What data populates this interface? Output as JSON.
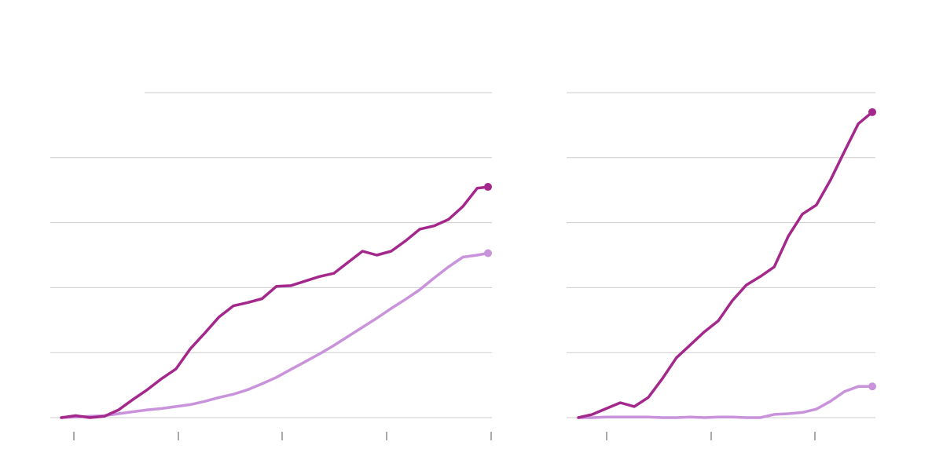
{
  "colors": {
    "background": "#ffffff",
    "gridline": "#cccccc",
    "axis_tick": "#555555",
    "series_dark": "#a4288c",
    "series_light": "#c993dc"
  },
  "chart_data": [
    {
      "type": "line",
      "title": "",
      "xlabel": "",
      "ylabel": "",
      "grid": true,
      "legend": "none",
      "ylim": [
        0,
        5
      ],
      "gridlines_y": [
        0,
        1,
        2,
        3,
        4,
        5
      ],
      "xlim": [
        0,
        29.5
      ],
      "x_ticks": [
        1,
        8,
        15,
        22,
        29
      ],
      "series": [
        {
          "color_key": "series_dark",
          "x": [
            0,
            1,
            2,
            3,
            4,
            5,
            6,
            7,
            8,
            9,
            10,
            11,
            12,
            13,
            14,
            15,
            16,
            17,
            18,
            19,
            20,
            21,
            22,
            23,
            24,
            25,
            26,
            27,
            28,
            29,
            29.75
          ],
          "values": [
            0,
            0.03,
            0,
            0.02,
            0.12,
            0.28,
            0.43,
            0.6,
            0.75,
            1.06,
            1.3,
            1.55,
            1.72,
            1.77,
            1.83,
            2.02,
            2.03,
            2.1,
            2.17,
            2.22,
            2.39,
            2.56,
            2.5,
            2.56,
            2.72,
            2.9,
            2.95,
            3.05,
            3.25,
            3.53,
            3.55
          ],
          "end_marker": true
        },
        {
          "color_key": "series_light",
          "x": [
            0,
            1,
            2,
            3,
            4,
            5,
            6,
            7,
            8,
            9,
            10,
            11,
            12,
            13,
            14,
            15,
            16,
            17,
            18,
            19,
            20,
            21,
            22,
            23,
            24,
            25,
            26,
            27,
            28,
            29,
            29.75
          ],
          "values": [
            0,
            0.01,
            0.02,
            0.03,
            0.06,
            0.09,
            0.12,
            0.14,
            0.17,
            0.2,
            0.25,
            0.31,
            0.36,
            0.43,
            0.52,
            0.62,
            0.74,
            0.86,
            0.98,
            1.11,
            1.25,
            1.39,
            1.53,
            1.68,
            1.82,
            1.97,
            2.15,
            2.32,
            2.47,
            2.5,
            2.53
          ],
          "end_marker": true
        }
      ]
    },
    {
      "type": "line",
      "title": "",
      "xlabel": "",
      "ylabel": "",
      "grid": true,
      "legend": "none",
      "ylim": [
        0,
        5
      ],
      "gridlines_y": [
        0,
        1,
        2,
        3,
        4,
        5
      ],
      "xlim": [
        0,
        29.5
      ],
      "x_ticks": [
        2,
        9,
        16
      ],
      "series": [
        {
          "color_key": "series_dark",
          "x": [
            0,
            1,
            2,
            3,
            4,
            5,
            6,
            7,
            8,
            9,
            10,
            11,
            12,
            13,
            14,
            15,
            16,
            17,
            18,
            19,
            20,
            21
          ],
          "values": [
            0,
            0.05,
            0.14,
            0.23,
            0.17,
            0.31,
            0.6,
            0.92,
            1.12,
            1.32,
            1.49,
            1.8,
            2.04,
            2.17,
            2.32,
            2.79,
            3.13,
            3.27,
            3.65,
            4.09,
            4.52,
            4.7
          ],
          "end_marker": true
        },
        {
          "color_key": "series_light",
          "x": [
            0,
            1,
            2,
            3,
            4,
            5,
            6,
            7,
            8,
            9,
            10,
            11,
            12,
            13,
            14,
            15,
            16,
            17,
            18,
            19,
            20,
            21
          ],
          "values": [
            0,
            0,
            0.01,
            0.01,
            0.01,
            0.01,
            0,
            0,
            0.01,
            0,
            0.01,
            0.01,
            0,
            0,
            0.05,
            0.06,
            0.08,
            0.13,
            0.25,
            0.4,
            0.48,
            0.48
          ],
          "end_marker": true
        }
      ]
    }
  ]
}
